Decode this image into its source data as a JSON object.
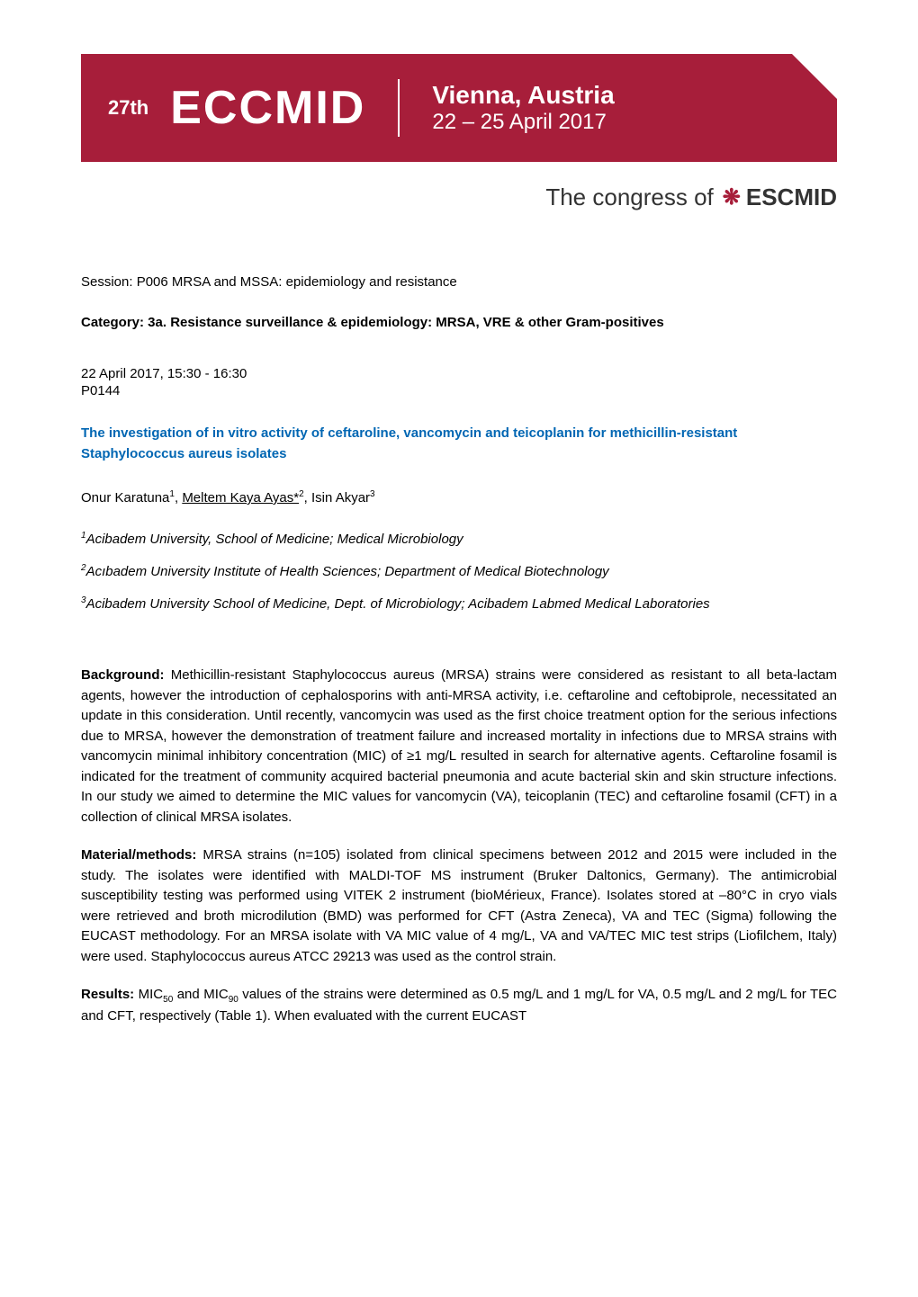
{
  "banner": {
    "edition": "27th",
    "brand": "ECCMID",
    "location": "Vienna, Austria",
    "dates": "22 – 25 April 2017",
    "background_color": "#a71e3a",
    "text_color": "#ffffff"
  },
  "congress": {
    "prefix": "The congress of",
    "org": "ESCMID",
    "icon_color": "#a71e3a"
  },
  "session": "Session: P006 MRSA and MSSA: epidemiology and resistance",
  "category": "Category: 3a. Resistance surveillance & epidemiology: MRSA, VRE & other Gram-positives",
  "datetime": "22 April 2017, 15:30 - 16:30",
  "pnum": "P0144",
  "title": "The investigation of in vitro activity of ceftaroline, vancomycin and teicoplanin for methicillin-resistant Staphylococcus aureus isolates",
  "title_color": "#0066b3",
  "authors": {
    "a1": "Onur Karatuna",
    "a1_sup": "1",
    "a2": "Meltem Kaya Ayas*",
    "a2_sup": "2",
    "a3": "Isin Akyar",
    "a3_sup": "3"
  },
  "affiliations": {
    "af1_sup": "1",
    "af1": "Acibadem University, School of Medicine; Medical Microbiology",
    "af2_sup": "2",
    "af2": "Acıbadem University Institute of Health Sciences; Department of Medical Biotechnology",
    "af3_sup": "3",
    "af3": "Acibadem University School of Medicine, Dept. of Microbiology; Acibadem Labmed Medical Laboratories"
  },
  "background": {
    "label": "Background:",
    "text": " Methicillin-resistant Staphylococcus aureus (MRSA) strains were considered as resistant to all beta-lactam agents, however the introduction of cephalosporins with anti-MRSA activity, i.e. ceftaroline and ceftobiprole, necessitated an update in this consideration. Until recently, vancomycin was used as the first choice treatment option for the serious infections due to MRSA, however the demonstration of treatment failure and increased mortality in infections due to MRSA strains with vancomycin minimal inhibitory concentration (MIC) of ≥1 mg/L resulted in search for alternative agents. Ceftaroline fosamil is indicated for the treatment of community acquired bacterial pneumonia and acute bacterial skin and skin structure infections. In our study we aimed to determine the MIC values for vancomycin (VA), teicoplanin (TEC) and ceftaroline fosamil (CFT) in a collection of clinical MRSA isolates."
  },
  "methods": {
    "label": "Material/methods:",
    "text": " MRSA strains (n=105) isolated from clinical specimens between 2012 and 2015 were included in the study. The isolates were identified with MALDI-TOF MS instrument (Bruker Daltonics, Germany). The antimicrobial susceptibility testing was performed using VITEK 2 instrument (bioMérieux, France). Isolates stored at –80°C in cryo vials were retrieved and broth microdilution (BMD) was performed for CFT (Astra Zeneca), VA and TEC (Sigma) following the EUCAST methodology. For an MRSA isolate with VA MIC value of 4 mg/L, VA and VA/TEC MIC test strips (Liofilchem, Italy) were used. Staphylococcus aureus ATCC 29213 was used as the control strain."
  },
  "results": {
    "label": "Results:",
    "text_before_sub1": " MIC",
    "sub1": "50",
    "text_mid": " and MIC",
    "sub2": "90",
    "text_after_sub2": " values of the strains were determined as 0.5 mg/L and 1 mg/L for VA, 0.5 mg/L and 2 mg/L for TEC and CFT, respectively (Table 1). When evaluated with the current EUCAST"
  },
  "typography": {
    "body_font_size": 15,
    "title_font_size": 15,
    "banner_brand_font_size": 52,
    "banner_location_font_size": 28,
    "congress_font_size": 26
  }
}
